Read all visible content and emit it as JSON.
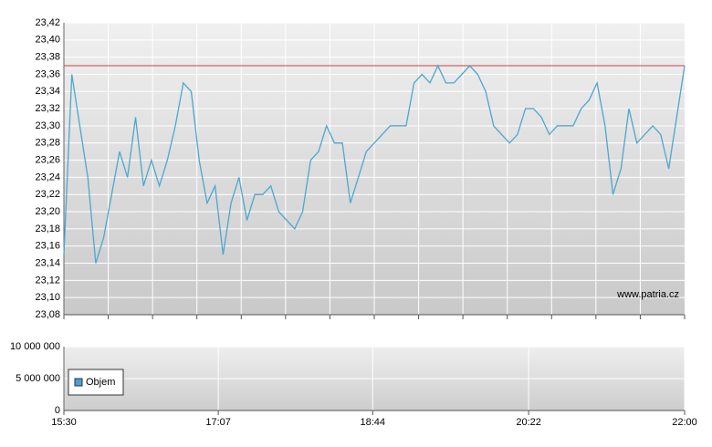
{
  "chart_data": [
    {
      "type": "line",
      "watermark": "www.patria.cz",
      "x": [
        "15:30",
        "15:35",
        "15:40",
        "15:45",
        "15:50",
        "15:55",
        "16:00",
        "16:05",
        "16:10",
        "16:15",
        "16:20",
        "16:25",
        "16:30",
        "16:35",
        "16:40",
        "16:45",
        "16:50",
        "16:55",
        "17:00",
        "17:05",
        "17:10",
        "17:15",
        "17:20",
        "17:25",
        "17:30",
        "17:35",
        "17:40",
        "17:45",
        "17:50",
        "17:55",
        "18:00",
        "18:05",
        "18:10",
        "18:15",
        "18:20",
        "18:25",
        "18:30",
        "18:35",
        "18:40",
        "18:45",
        "18:50",
        "18:55",
        "19:00",
        "19:05",
        "19:10",
        "19:15",
        "19:20",
        "19:25",
        "19:30",
        "19:35",
        "19:40",
        "19:45",
        "19:50",
        "19:55",
        "20:00",
        "20:05",
        "20:10",
        "20:15",
        "20:20",
        "20:25",
        "20:30",
        "20:35",
        "20:40",
        "20:45",
        "20:50",
        "20:55",
        "21:00",
        "21:05",
        "21:10",
        "21:15",
        "21:20",
        "21:25",
        "21:30",
        "21:35",
        "21:40",
        "21:45",
        "21:50",
        "21:55",
        "22:00"
      ],
      "series": [
        {
          "color": "#4aa8d0",
          "values": [
            23.15,
            23.36,
            23.3,
            23.24,
            23.14,
            23.17,
            23.22,
            23.27,
            23.24,
            23.31,
            23.23,
            23.26,
            23.23,
            23.26,
            23.3,
            23.35,
            23.34,
            23.26,
            23.21,
            23.23,
            23.15,
            23.21,
            23.24,
            23.19,
            23.22,
            23.22,
            23.23,
            23.2,
            23.19,
            23.18,
            23.2,
            23.26,
            23.27,
            23.3,
            23.28,
            23.28,
            23.21,
            23.24,
            23.27,
            23.28,
            23.29,
            23.3,
            23.3,
            23.3,
            23.35,
            23.36,
            23.35,
            23.37,
            23.35,
            23.35,
            23.36,
            23.37,
            23.36,
            23.34,
            23.3,
            23.29,
            23.28,
            23.29,
            23.32,
            23.32,
            23.31,
            23.29,
            23.3,
            23.3,
            23.3,
            23.32,
            23.33,
            23.35,
            23.3,
            23.22,
            23.25,
            23.32,
            23.28,
            23.29,
            23.3,
            23.29,
            23.25,
            23.31,
            23.37
          ]
        }
      ],
      "reference_line": {
        "value": 23.37,
        "color": "#d04040"
      },
      "xlim": [
        "15:30",
        "22:00"
      ],
      "ylim": [
        23.08,
        23.42
      ],
      "yticks": [
        {
          "value": 23.08,
          "label": "23,08"
        },
        {
          "value": 23.1,
          "label": "23,10"
        },
        {
          "value": 23.12,
          "label": "23,12"
        },
        {
          "value": 23.14,
          "label": "23,14"
        },
        {
          "value": 23.16,
          "label": "23,16"
        },
        {
          "value": 23.18,
          "label": "23,18"
        },
        {
          "value": 23.2,
          "label": "23,20"
        },
        {
          "value": 23.22,
          "label": "23,22"
        },
        {
          "value": 23.24,
          "label": "23,24"
        },
        {
          "value": 23.26,
          "label": "23,26"
        },
        {
          "value": 23.28,
          "label": "23,28"
        },
        {
          "value": 23.3,
          "label": "23,30"
        },
        {
          "value": 23.32,
          "label": "23,32"
        },
        {
          "value": 23.34,
          "label": "23,34"
        },
        {
          "value": 23.36,
          "label": "23,36"
        },
        {
          "value": 23.38,
          "label": "23,38"
        },
        {
          "value": 23.4,
          "label": "23,40"
        },
        {
          "value": 23.42,
          "label": "23,42"
        }
      ],
      "grid": true
    },
    {
      "type": "bar",
      "series": [
        {
          "name": "Objem",
          "color": "#4a9fd4"
        }
      ],
      "xlim": [
        "15:30",
        "22:00"
      ],
      "xticks": [
        "15:30",
        "17:07",
        "18:44",
        "20:22",
        "22:00"
      ],
      "ylim": [
        0,
        10000000
      ],
      "yticks": [
        {
          "value": 0,
          "label": "0"
        },
        {
          "value": 5000000,
          "label": "5 000 000"
        },
        {
          "value": 10000000,
          "label": "10 000 000"
        }
      ],
      "grid": true
    }
  ]
}
